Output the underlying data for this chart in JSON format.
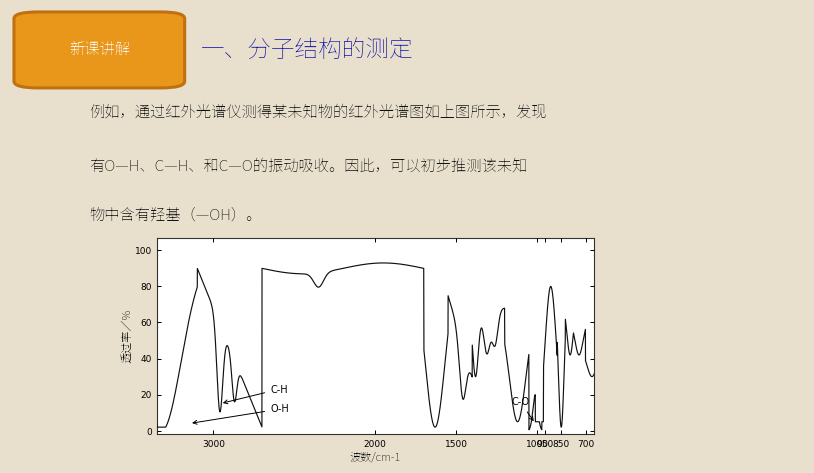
{
  "background_color": "#e8e0cc",
  "title_badge_text": "新课讲解",
  "title_badge_bg": "#e8971a",
  "title_badge_border": "#c07010",
  "title_text": "一、分子结构的测定",
  "title_color": "#1a1aaa",
  "body_lines": [
    "例如，通过红外光谱仪测得某未知物的红外光谱图如上图所示，发现",
    "有O—H、C—H、和C—O的振动吸收。因此，可以初步推测该未知",
    "物中含有羟基（—OH）。"
  ],
  "body_color": "#111111",
  "chart_xticks": [
    3000,
    2000,
    1500,
    1000,
    950,
    850,
    700
  ],
  "chart_yticks": [
    0,
    20,
    40,
    60,
    80,
    100
  ],
  "xlabel": "波数/cm-1",
  "ylabel": "透过率／%",
  "annotation_CH": "C-H",
  "annotation_OH": "O-H",
  "annotation_CO": "C-O",
  "line_color": "#111111",
  "chart_bg": "#ffffff",
  "border_color": "#333333"
}
